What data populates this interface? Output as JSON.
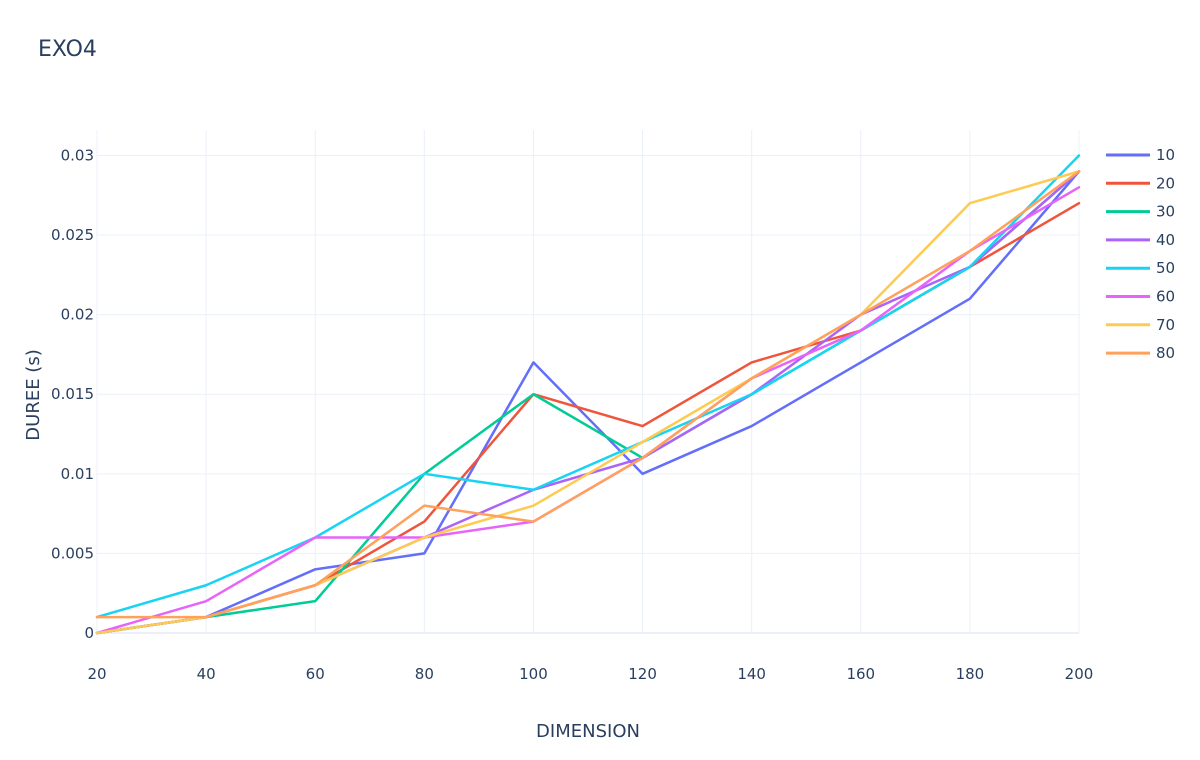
{
  "chart_data": {
    "type": "line",
    "title": "EXO4",
    "xlabel": "DIMENSION",
    "ylabel": "DUREE (s)",
    "xlim": [
      20,
      200
    ],
    "ylim": [
      0,
      0.0316
    ],
    "x": [
      20,
      40,
      60,
      80,
      100,
      120,
      140,
      160,
      180,
      200
    ],
    "x_ticks": [
      20,
      40,
      60,
      80,
      100,
      120,
      140,
      160,
      180,
      200
    ],
    "x_tick_labels": [
      "20",
      "40",
      "60",
      "80",
      "100",
      "120",
      "140",
      "160",
      "180",
      "200"
    ],
    "y_ticks": [
      0,
      0.005,
      0.01,
      0.015,
      0.02,
      0.025,
      0.03
    ],
    "y_tick_labels": [
      "0",
      "0.005",
      "0.01",
      "0.015",
      "0.02",
      "0.025",
      "0.03"
    ],
    "grid": true,
    "legend_position": "top-right",
    "series": [
      {
        "name": "10",
        "color": "#636efa",
        "values": [
          0,
          0.001,
          0.004,
          0.005,
          0.017,
          0.01,
          0.013,
          0.017,
          0.021,
          0.029
        ]
      },
      {
        "name": "20",
        "color": "#ef553b",
        "values": [
          0,
          0.001,
          0.003,
          0.007,
          0.015,
          0.013,
          0.017,
          0.019,
          0.023,
          0.027
        ]
      },
      {
        "name": "30",
        "color": "#00cc96",
        "values": [
          0,
          0.001,
          0.002,
          0.01,
          0.015,
          0.011,
          0.015,
          0.019,
          0.023,
          0.029
        ]
      },
      {
        "name": "40",
        "color": "#ab63fa",
        "values": [
          0,
          0.001,
          0.003,
          0.006,
          0.009,
          0.011,
          0.015,
          0.02,
          0.023,
          0.029
        ]
      },
      {
        "name": "50",
        "color": "#19d3f3",
        "values": [
          0.001,
          0.003,
          0.006,
          0.01,
          0.009,
          0.012,
          0.015,
          0.019,
          0.023,
          0.03
        ]
      },
      {
        "name": "60",
        "color": "#ff6692",
        "display_color": "#e763fa",
        "values": [
          0,
          0.002,
          0.006,
          0.006,
          0.007,
          0.011,
          0.016,
          0.019,
          0.024,
          0.028
        ]
      },
      {
        "name": "70",
        "color": "#fecb52",
        "values": [
          0,
          0.001,
          0.003,
          0.006,
          0.008,
          0.012,
          0.016,
          0.02,
          0.027,
          0.029
        ]
      },
      {
        "name": "80",
        "color": "#ffa15a",
        "values": [
          0.001,
          0.001,
          0.003,
          0.008,
          0.007,
          0.011,
          0.016,
          0.02,
          0.024,
          0.029
        ]
      }
    ]
  }
}
